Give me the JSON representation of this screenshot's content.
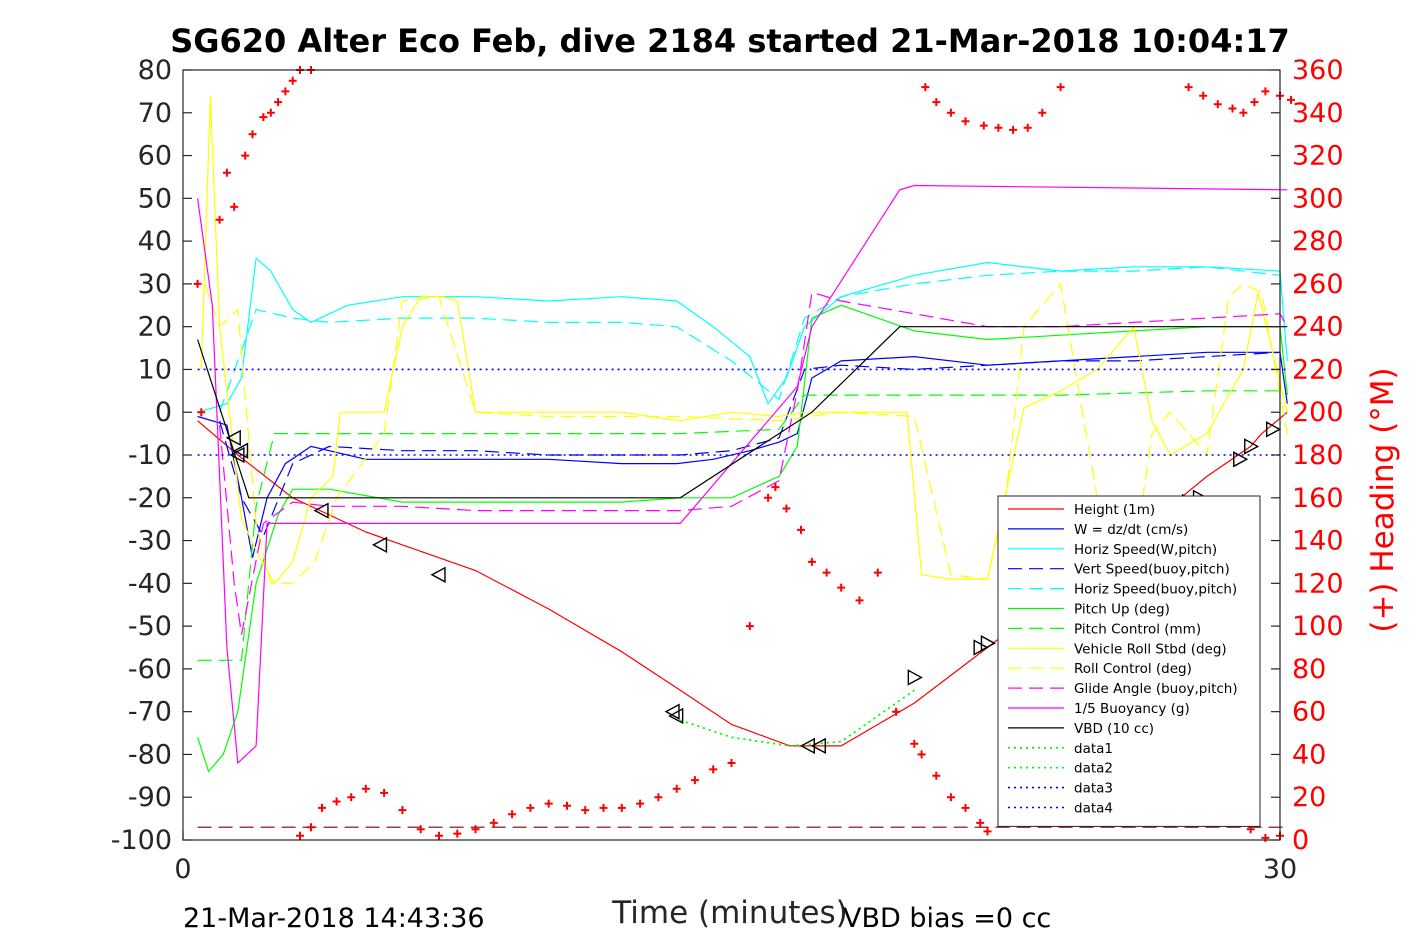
{
  "footer": {
    "left": "21-Mar-2018 14:43:36",
    "right": "VBD bias =0 cc"
  },
  "chart_data": {
    "type": "line",
    "title": "SG620 Alter Eco Feb, dive 2184 started 21-Mar-2018 10:04:17",
    "xlabel": "Time (minutes)",
    "ylabel": "",
    "y2label": "(+) Heading (°M)",
    "xlim": [
      0,
      30
    ],
    "ylim": [
      -100,
      80
    ],
    "y2lim": [
      0,
      360
    ],
    "x_ticks": [
      0,
      30
    ],
    "y_ticks": [
      -100,
      -90,
      -80,
      -70,
      -60,
      -50,
      -40,
      -30,
      -20,
      -10,
      0,
      10,
      20,
      30,
      40,
      50,
      60,
      70,
      80
    ],
    "y2_ticks": [
      0,
      20,
      40,
      60,
      80,
      100,
      120,
      140,
      160,
      180,
      200,
      220,
      240,
      260,
      280,
      300,
      320,
      340,
      360
    ],
    "grid": false,
    "legend_position": "bottom-right",
    "colors": {
      "y2_axis": "#ff0000"
    },
    "series": [
      {
        "name": "Height (1m)",
        "color": "#ff0000",
        "style": "solid",
        "axis": "left",
        "x": [
          0.4,
          1.5,
          3,
          5,
          8,
          10,
          12,
          13.6,
          15,
          16.6,
          18,
          20,
          22,
          24,
          26,
          27,
          28,
          29.2,
          29.5,
          30.2
        ],
        "y": [
          -2,
          -10,
          -20,
          -28,
          -37,
          -46,
          -56,
          -65,
          -73,
          -78,
          -78,
          -68,
          -55,
          -42,
          -30,
          -22,
          -15,
          -8,
          -5,
          0
        ]
      },
      {
        "name": "W = dz/dt (cm/s)",
        "color": "#0000ff",
        "style": "solid",
        "axis": "left",
        "x": [
          0.4,
          1.2,
          1.6,
          1.9,
          2.3,
          2.8,
          3.5,
          5,
          8,
          10,
          12,
          13.5,
          14.5,
          15.5,
          16.3,
          16.8,
          17.2,
          18,
          20,
          22,
          24,
          26,
          28,
          30,
          30.2
        ],
        "y": [
          -1,
          -3,
          -20,
          -34,
          -20,
          -12,
          -8,
          -11,
          -11,
          -11,
          -12,
          -12,
          -11,
          -9,
          -7,
          -5,
          8,
          12,
          13,
          11,
          12,
          13,
          14,
          14,
          2
        ]
      },
      {
        "name": "Horiz Speed(W,pitch)",
        "color": "#00ffff",
        "style": "solid",
        "axis": "left",
        "x": [
          0.4,
          1.2,
          1.6,
          2.0,
          2.4,
          3.0,
          3.5,
          4.5,
          6,
          8,
          10,
          12,
          13.5,
          14.5,
          15.5,
          16.0,
          16.5,
          17.0,
          18,
          20,
          22,
          24,
          26,
          28,
          30,
          30.2
        ],
        "y": [
          0,
          2,
          8,
          36,
          33,
          24,
          21,
          25,
          27,
          27,
          26,
          27,
          26,
          20,
          13,
          2,
          8,
          20,
          27,
          32,
          35,
          33,
          34,
          34,
          33,
          12
        ]
      },
      {
        "name": "Vert Speed(buoy,pitch)",
        "color": "#0000ff",
        "style": "dashed",
        "axis": "left",
        "x": [
          1.0,
          1.6,
          2.2,
          3,
          4,
          6,
          8,
          10,
          12,
          13.6,
          15,
          16.3,
          17.0,
          18,
          20,
          22,
          24,
          26,
          28,
          30
        ],
        "y": [
          -2,
          -20,
          -29,
          -12,
          -8,
          -9,
          -9,
          -10,
          -10,
          -10,
          -9,
          -6,
          10,
          11,
          10,
          11,
          12,
          12,
          13,
          14
        ]
      },
      {
        "name": "Horiz Speed(buoy,pitch)",
        "color": "#00ffff",
        "style": "dashed",
        "axis": "left",
        "x": [
          1.0,
          2.0,
          3,
          4,
          6,
          8,
          10,
          12,
          13.5,
          15,
          16.3,
          17.0,
          18,
          20,
          22,
          24,
          26,
          28,
          30
        ],
        "y": [
          0,
          24,
          22,
          21,
          22,
          22,
          21,
          21,
          20,
          12,
          3,
          22,
          27,
          30,
          32,
          33,
          33,
          34,
          32
        ]
      },
      {
        "name": "Pitch Up (deg)",
        "color": "#00ff00",
        "style": "solid",
        "axis": "left",
        "x": [
          0.4,
          0.7,
          1.1,
          1.5,
          2.0,
          2.6,
          3.0,
          4,
          6,
          8,
          10,
          12,
          13.6,
          15,
          16.3,
          16.8,
          17.2,
          18,
          19,
          20,
          22,
          24,
          26,
          28,
          30,
          30.2
        ],
        "y": [
          -76,
          -84,
          -80,
          -70,
          -40,
          -24,
          -18,
          -18,
          -21,
          -21,
          -21,
          -21,
          -20,
          -20,
          -15,
          -8,
          22,
          25,
          22,
          19,
          17,
          18,
          19,
          20,
          20,
          4
        ]
      },
      {
        "name": "Pitch Control (mm)",
        "color": "#00ff00",
        "style": "dashed",
        "axis": "left",
        "x": [
          0.4,
          1.3,
          1.6,
          2.0,
          2.5,
          3.5,
          8,
          13.6,
          16.3,
          17.0,
          18,
          20,
          24,
          28,
          30.2
        ],
        "y": [
          -58,
          -58,
          -58,
          -22,
          -5,
          -5,
          -5,
          -5,
          -4,
          4,
          4,
          4,
          4,
          5,
          5
        ]
      },
      {
        "name": "Vehicle Roll Stbd (deg)",
        "color": "#ffff00",
        "style": "solid",
        "axis": "left",
        "x": [
          0.5,
          0.75,
          1.0,
          1.6,
          2.1,
          2.5,
          3.0,
          3.5,
          4.1,
          4.3,
          5.5,
          6,
          6.5,
          7.1,
          7.5,
          8,
          10,
          12,
          13.6,
          15,
          16.3,
          17,
          18,
          19,
          19.8,
          20.2,
          21,
          22,
          23,
          24,
          25,
          26,
          26.5,
          27,
          28,
          29,
          29.4,
          30.2
        ],
        "y": [
          10,
          74,
          20,
          -25,
          -34,
          -40,
          -35,
          -20,
          -15,
          0,
          0,
          20,
          27,
          27,
          26,
          0,
          0,
          0,
          -2,
          0,
          -1,
          0,
          0,
          0,
          0,
          -38,
          -39,
          -39,
          1,
          5,
          10,
          20,
          -2,
          -10,
          -5,
          10,
          28,
          0
        ]
      },
      {
        "name": "Roll Control (deg)",
        "color": "#ffff00",
        "style": "dashed",
        "axis": "left",
        "x": [
          0.6,
          1.0,
          1.5,
          2.0,
          2.4,
          3.0,
          3.6,
          4.2,
          5.5,
          6,
          7,
          8,
          10,
          13.6,
          16.3,
          18,
          20,
          21,
          22,
          22.5,
          23,
          24,
          25,
          25.5,
          26,
          26.5,
          27,
          28,
          28.6,
          29,
          29.5,
          30.2
        ],
        "y": [
          30,
          20,
          24,
          -26,
          -40,
          -40,
          -35,
          -20,
          -5,
          26,
          27,
          0,
          -1,
          -1,
          -2,
          0,
          -1,
          -38,
          -39,
          -20,
          20,
          30,
          -20,
          -40,
          -35,
          -5,
          0,
          -10,
          27,
          30,
          28,
          -5
        ]
      },
      {
        "name": "Glide Angle (buoy,pitch)",
        "color": "#ff00ff",
        "style": "dashed",
        "axis": "left",
        "x": [
          1.0,
          1.4,
          1.6,
          2.2,
          3.0,
          4,
          6,
          8,
          10,
          12,
          13.6,
          15,
          16.3,
          16.8,
          17.2,
          18,
          20,
          22,
          24,
          26,
          28,
          30,
          30.2
        ],
        "y": [
          -3,
          -40,
          -52,
          -26,
          -21,
          -22,
          -22,
          -23,
          -23,
          -23,
          -23,
          -22,
          -16,
          5,
          28,
          26,
          23,
          20,
          20,
          21,
          22,
          23,
          20
        ]
      },
      {
        "name": "1/5 Buoyancy (g)",
        "color": "#ff00ff",
        "style": "solid",
        "axis": "left",
        "x": [
          0.4,
          0.8,
          1.2,
          1.5,
          2.0,
          2.3,
          3.0,
          13.6,
          16.8,
          17.2,
          19.6,
          20.0,
          30.2
        ],
        "y": [
          50,
          25,
          -55,
          -82,
          -78,
          -26,
          -26,
          -26,
          6,
          20,
          52,
          53,
          52
        ]
      },
      {
        "name": "VBD (10 cc)",
        "color": "#000000",
        "style": "solid",
        "axis": "left",
        "x": [
          0.4,
          1.8,
          3.0,
          13.6,
          17.2,
          19.6,
          20.0,
          30.2
        ],
        "y": [
          17,
          -20,
          -20,
          -20,
          0,
          20,
          20,
          20
        ]
      },
      {
        "name": "data1",
        "color": "#00ff00",
        "style": "dotted",
        "axis": "left",
        "x": [
          13.6,
          15,
          16.6,
          18,
          20
        ],
        "y": [
          -72,
          -76,
          -78,
          -77,
          -65
        ]
      },
      {
        "name": "data2",
        "color": "#00ff00",
        "style": "dotted",
        "axis": "left",
        "x": [
          13.6,
          15,
          16.6,
          18,
          20
        ],
        "y": [
          -72,
          -76,
          -78,
          -77,
          -65
        ]
      },
      {
        "name": "data3",
        "color": "#0000ff",
        "style": "dotted",
        "axis": "left",
        "x": [
          0.4,
          30.2
        ],
        "y": [
          10,
          10
        ]
      },
      {
        "name": "data4",
        "color": "#0000ff",
        "style": "dotted",
        "axis": "left",
        "x": [
          0.4,
          30.2
        ],
        "y": [
          -10,
          -10
        ]
      }
    ],
    "reference_lines": [
      {
        "color": "#800000",
        "style": "dashed",
        "axis": "left",
        "x": [
          0.4,
          30.2
        ],
        "y": [
          -97,
          -97
        ]
      }
    ],
    "heading_points": {
      "color": "#ff0000",
      "marker": "plus",
      "axis": "right",
      "x": [
        0.4,
        0.5,
        1.0,
        1.2,
        1.4,
        1.7,
        1.9,
        2.2,
        2.4,
        2.6,
        2.8,
        3.0,
        3.2,
        3.5,
        3.2,
        3.5,
        3.8,
        4.2,
        4.6,
        5.0,
        5.5,
        6.0,
        6.5,
        7.0,
        7.5,
        8.0,
        8.5,
        9.0,
        9.5,
        10,
        10.5,
        11,
        11.5,
        12,
        12.5,
        13,
        13.5,
        14,
        14.5,
        15,
        15.5,
        16,
        16.2,
        16.5,
        16.9,
        17.2,
        17.6,
        18,
        18.5,
        19,
        19.5,
        20,
        20.2,
        20.6,
        21,
        21.4,
        21.8,
        22,
        20.3,
        20.6,
        21.0,
        21.4,
        21.9,
        22.3,
        22.7,
        23.1,
        23.5,
        24.0,
        24.5,
        25,
        25.5,
        26,
        26.4,
        26.8,
        27.2,
        27.6,
        28,
        28.4,
        28.8,
        29.2,
        29.6,
        30.0,
        27.5,
        27.9,
        28.3,
        28.7,
        29.0,
        29.3,
        29.6,
        30.0,
        30.3
      ],
      "y": [
        260,
        200,
        290,
        312,
        296,
        320,
        330,
        338,
        340,
        345,
        350,
        355,
        360,
        362,
        2,
        6,
        15,
        18,
        20,
        24,
        22,
        14,
        5,
        2,
        3,
        5,
        8,
        12,
        15,
        17,
        16,
        14,
        15,
        15,
        17,
        20,
        24,
        28,
        33,
        36,
        100,
        160,
        165,
        155,
        145,
        130,
        125,
        118,
        112,
        125,
        60,
        45,
        40,
        30,
        20,
        15,
        8,
        4,
        352,
        345,
        340,
        336,
        334,
        333,
        332,
        333,
        340,
        352,
        10,
        15,
        22,
        35,
        40,
        39,
        38,
        38,
        37,
        22,
        12,
        5,
        1,
        2,
        352,
        348,
        344,
        342,
        340,
        345,
        350,
        348,
        346
      ]
    },
    "triangles": {
      "color": "#000000",
      "left_pointing": {
        "x": [
          1.4,
          1.5,
          1.6,
          3.8,
          5.4,
          7.0,
          13.4,
          13.5,
          17.1,
          17.4
        ],
        "y": [
          -6,
          -10,
          -9,
          -23,
          -31,
          -38,
          -70,
          -71,
          -78,
          -78
        ]
      },
      "right_pointing": {
        "x": [
          20.0,
          21.8,
          22.0,
          23.6,
          23.9,
          25.1,
          25.4,
          26.4,
          26.6,
          27.5,
          27.8,
          28.9,
          29.2,
          29.8
        ],
        "y": [
          -62,
          -55,
          -54,
          -46,
          -44,
          -38,
          -37,
          -28,
          -26,
          -21,
          -20,
          -11,
          -8,
          -4
        ]
      }
    }
  }
}
